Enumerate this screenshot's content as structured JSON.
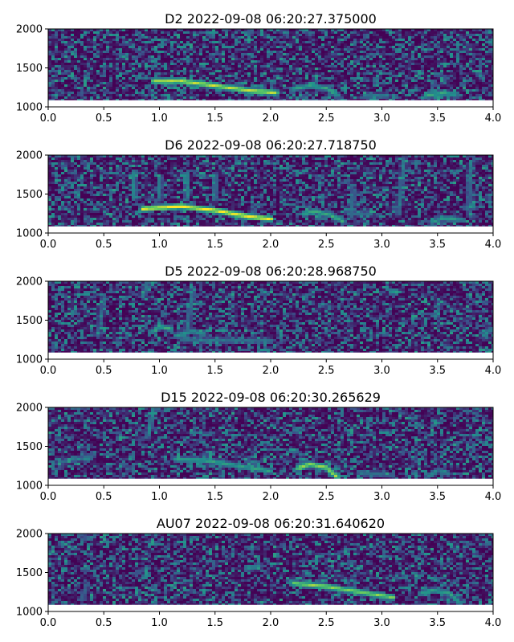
{
  "chart_data": [
    {
      "type": "heatmap",
      "title": "D2 2022-09-08 06:20:27.375000",
      "xlabel": "",
      "ylabel": "",
      "xlim": [
        0.0,
        4.0
      ],
      "ylim": [
        1000,
        2000
      ],
      "x_ticks": [
        "0.0",
        "0.5",
        "1.0",
        "1.5",
        "2.0",
        "2.5",
        "3.0",
        "3.5",
        "4.0"
      ],
      "y_ticks": [
        "1000",
        "1500",
        "2000"
      ],
      "colormap": "viridis",
      "calls": [
        {
          "points": [
            [
              0.95,
              1330
            ],
            [
              1.2,
              1330
            ],
            [
              1.5,
              1270
            ],
            [
              1.8,
              1210
            ],
            [
              2.05,
              1180
            ]
          ],
          "intensity": 0.9
        },
        {
          "points": [
            [
              2.2,
              1230
            ],
            [
              2.35,
              1270
            ],
            [
              2.5,
              1240
            ],
            [
              2.6,
              1150
            ]
          ],
          "intensity": 0.55
        },
        {
          "points": [
            [
              2.85,
              1140
            ],
            [
              3.05,
              1140
            ]
          ],
          "intensity": 0.4
        },
        {
          "points": [
            [
              3.4,
              1150
            ],
            [
              3.55,
              1175
            ],
            [
              3.65,
              1160
            ]
          ],
          "intensity": 0.6
        }
      ]
    },
    {
      "type": "heatmap",
      "title": "D6 2022-09-08 06:20:27.718750",
      "xlabel": "",
      "ylabel": "",
      "xlim": [
        0.0,
        4.0
      ],
      "ylim": [
        1000,
        2000
      ],
      "x_ticks": [
        "0.0",
        "0.5",
        "1.0",
        "1.5",
        "2.0",
        "2.5",
        "3.0",
        "3.5",
        "4.0"
      ],
      "y_ticks": [
        "1000",
        "1500",
        "2000"
      ],
      "colormap": "viridis",
      "calls": [
        {
          "points": [
            [
              0.85,
              1310
            ],
            [
              1.2,
              1340
            ],
            [
              1.5,
              1290
            ],
            [
              1.8,
              1210
            ],
            [
              2.0,
              1180
            ]
          ],
          "intensity": 1.0
        },
        {
          "points": [
            [
              2.3,
              1250
            ],
            [
              2.4,
              1280
            ],
            [
              2.55,
              1220
            ],
            [
              2.65,
              1150
            ]
          ],
          "intensity": 0.6
        },
        {
          "points": [
            [
              2.7,
              1250
            ],
            [
              2.9,
              1250
            ]
          ],
          "intensity": 0.35
        },
        {
          "points": [
            [
              3.45,
              1140
            ],
            [
              3.55,
              1190
            ],
            [
              3.7,
              1170
            ]
          ],
          "intensity": 0.5
        },
        {
          "points": [
            [
              0.77,
              1450
            ],
            [
              0.77,
              1780
            ]
          ],
          "intensity": 0.45
        },
        {
          "points": [
            [
              1.0,
              1450
            ],
            [
              1.0,
              1720
            ]
          ],
          "intensity": 0.4
        },
        {
          "points": [
            [
              1.25,
              1450
            ],
            [
              1.25,
              1760
            ]
          ],
          "intensity": 0.45
        },
        {
          "points": [
            [
              1.5,
              1450
            ],
            [
              1.5,
              1740
            ]
          ],
          "intensity": 0.4
        },
        {
          "points": [
            [
              2.72,
              1250
            ],
            [
              2.75,
              1550
            ]
          ],
          "intensity": 0.35
        },
        {
          "points": [
            [
              3.15,
              1250
            ],
            [
              3.2,
              1950
            ]
          ],
          "intensity": 0.35
        },
        {
          "points": [
            [
              3.78,
              1300
            ],
            [
              3.8,
              1900
            ]
          ],
          "intensity": 0.35
        }
      ]
    },
    {
      "type": "heatmap",
      "title": "D5 2022-09-08 06:20:28.968750",
      "xlabel": "",
      "ylabel": "",
      "xlim": [
        0.0,
        4.0
      ],
      "ylim": [
        1000,
        2000
      ],
      "x_ticks": [
        "0.0",
        "0.5",
        "1.0",
        "1.5",
        "2.0",
        "2.5",
        "3.0",
        "3.5",
        "4.0"
      ],
      "y_ticks": [
        "1000",
        "1500",
        "2000"
      ],
      "colormap": "viridis",
      "calls": [
        {
          "points": [
            [
              0.95,
              1350
            ],
            [
              1.0,
              1420
            ],
            [
              1.1,
              1390
            ]
          ],
          "intensity": 0.6
        },
        {
          "points": [
            [
              1.15,
              1300
            ],
            [
              1.3,
              1360
            ],
            [
              1.4,
              1320
            ]
          ],
          "intensity": 0.5
        },
        {
          "points": [
            [
              1.2,
              1250
            ],
            [
              1.55,
              1240
            ],
            [
              2.0,
              1230
            ]
          ],
          "intensity": 0.35
        },
        {
          "points": [
            [
              1.25,
              1400
            ],
            [
              1.3,
              1870
            ]
          ],
          "intensity": 0.35
        },
        {
          "points": [
            [
              0.85,
              1800
            ],
            [
              0.9,
              2000
            ]
          ],
          "intensity": 0.4
        },
        {
          "points": [
            [
              0.45,
              1300
            ],
            [
              0.5,
              1800
            ]
          ],
          "intensity": 0.3
        },
        {
          "points": [
            [
              3.9,
              1340
            ],
            [
              4.0,
              1380
            ]
          ],
          "intensity": 0.4
        }
      ]
    },
    {
      "type": "heatmap",
      "title": "D15 2022-09-08 06:20:30.265629",
      "xlabel": "",
      "ylabel": "",
      "xlim": [
        0.0,
        4.0
      ],
      "ylim": [
        1000,
        2000
      ],
      "x_ticks": [
        "0.0",
        "0.5",
        "1.0",
        "1.5",
        "2.0",
        "2.5",
        "3.0",
        "3.5",
        "4.0"
      ],
      "y_ticks": [
        "1000",
        "1500",
        "2000"
      ],
      "colormap": "viridis",
      "calls": [
        {
          "points": [
            [
              1.15,
              1330
            ],
            [
              1.4,
              1320
            ],
            [
              1.7,
              1250
            ],
            [
              2.0,
              1180
            ]
          ],
          "intensity": 0.55
        },
        {
          "points": [
            [
              2.25,
              1220
            ],
            [
              2.35,
              1270
            ],
            [
              2.5,
              1230
            ],
            [
              2.6,
              1100
            ]
          ],
          "intensity": 0.85
        },
        {
          "points": [
            [
              2.8,
              1150
            ],
            [
              3.0,
              1140
            ],
            [
              3.1,
              1130
            ]
          ],
          "intensity": 0.35
        },
        {
          "points": [
            [
              3.4,
              1100
            ],
            [
              3.5,
              1200
            ],
            [
              3.6,
              1150
            ]
          ],
          "intensity": 0.4
        },
        {
          "points": [
            [
              0.9,
              1650
            ],
            [
              0.95,
              2000
            ]
          ],
          "intensity": 0.45
        },
        {
          "points": [
            [
              0.1,
              1300
            ],
            [
              0.25,
              1330
            ],
            [
              0.4,
              1380
            ]
          ],
          "intensity": 0.35
        }
      ]
    },
    {
      "type": "heatmap",
      "title": "AU07 2022-09-08 06:20:31.640620",
      "xlabel": "",
      "ylabel": "",
      "xlim": [
        0.0,
        4.0
      ],
      "ylim": [
        1000,
        2000
      ],
      "x_ticks": [
        "0.0",
        "0.5",
        "1.0",
        "1.5",
        "2.0",
        "2.5",
        "3.0",
        "3.5",
        "4.0"
      ],
      "y_ticks": [
        "1000",
        "1500",
        "2000"
      ],
      "colormap": "viridis",
      "calls": [
        {
          "points": [
            [
              2.2,
              1360
            ],
            [
              2.5,
              1320
            ],
            [
              2.8,
              1250
            ],
            [
              3.1,
              1180
            ]
          ],
          "intensity": 0.8
        },
        {
          "points": [
            [
              3.35,
              1230
            ],
            [
              3.45,
              1270
            ],
            [
              3.6,
              1240
            ],
            [
              3.7,
              1110
            ]
          ],
          "intensity": 0.55
        },
        {
          "points": [
            [
              1.8,
              1550
            ],
            [
              1.9,
              1590
            ]
          ],
          "intensity": 0.45
        },
        {
          "points": [
            [
              0.3,
              1150
            ],
            [
              0.35,
              1350
            ]
          ],
          "intensity": 0.3
        }
      ]
    }
  ]
}
